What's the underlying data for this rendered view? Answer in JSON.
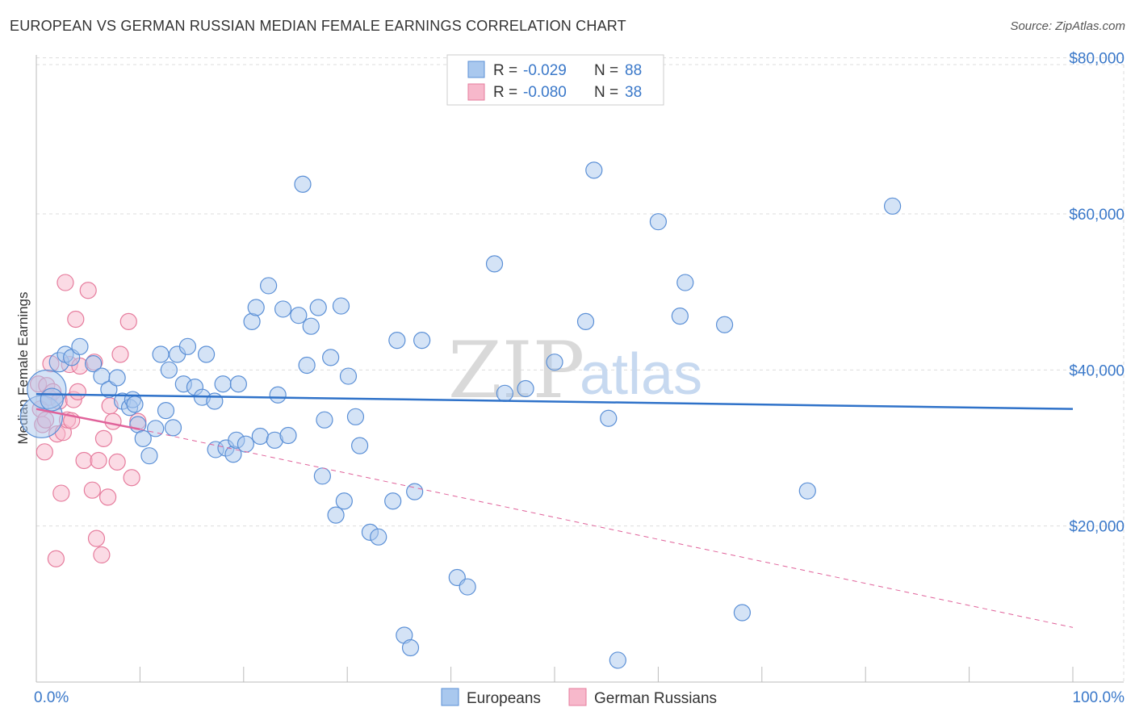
{
  "title": "EUROPEAN VS GERMAN RUSSIAN MEDIAN FEMALE EARNINGS CORRELATION CHART",
  "source": "Source: ZipAtlas.com",
  "watermark": {
    "zip": "ZIP",
    "atlas": "atlas"
  },
  "colors": {
    "blue_fill": "#a9c8ee",
    "blue_stroke": "#5a8fd6",
    "blue_line": "#2f72c9",
    "pink_fill": "#f7b8cb",
    "pink_stroke": "#e67c9d",
    "pink_line": "#e0629a",
    "grid": "#dddddd",
    "label": "#3a78c9"
  },
  "legend": {
    "rows": [
      {
        "r_label": "R = ",
        "r_value": "-0.029",
        "n_label": "N = ",
        "n_value": "88"
      },
      {
        "r_label": "R = ",
        "r_value": "-0.080",
        "n_label": "N = ",
        "n_value": "38"
      }
    ]
  },
  "bottom_legend": {
    "series1": "Europeans",
    "series2": "German Russians"
  },
  "chart_data": {
    "type": "scatter",
    "title": "EUROPEAN VS GERMAN RUSSIAN MEDIAN FEMALE EARNINGS CORRELATION CHART",
    "xlabel": "",
    "ylabel": "Median Female Earnings",
    "xlim": [
      0,
      100
    ],
    "ylim": [
      0,
      81000
    ],
    "x_tick_labels": [
      "0.0%",
      "100.0%"
    ],
    "y_ticks": [
      {
        "value": 20000,
        "label": "$20,000"
      },
      {
        "value": 40000,
        "label": "$40,000"
      },
      {
        "value": 60000,
        "label": "$60,000"
      },
      {
        "value": 80000,
        "label": "$80,000"
      }
    ],
    "series": [
      {
        "name": "Europeans",
        "R": -0.029,
        "N": 88,
        "trend": {
          "x": [
            0,
            100
          ],
          "y": [
            36900,
            35000
          ]
        },
        "points": [
          [
            0.5,
            34000,
            26
          ],
          [
            1.0,
            37500,
            24
          ],
          [
            1.5,
            36200,
            14
          ],
          [
            2.2,
            41000,
            12
          ],
          [
            2.8,
            42000,
            10
          ],
          [
            3.4,
            41600,
            10
          ],
          [
            4.2,
            43000,
            10
          ],
          [
            5.5,
            40800,
            10
          ],
          [
            6.3,
            39200,
            10
          ],
          [
            7.0,
            37500,
            10
          ],
          [
            7.8,
            39000,
            10
          ],
          [
            8.3,
            36000,
            10
          ],
          [
            9.0,
            35200,
            10
          ],
          [
            9.3,
            36200,
            10
          ],
          [
            9.5,
            35600,
            10
          ],
          [
            9.8,
            33000,
            10
          ],
          [
            10.3,
            31200,
            10
          ],
          [
            10.9,
            29000,
            10
          ],
          [
            11.5,
            32500,
            10
          ],
          [
            12.5,
            34800,
            10
          ],
          [
            12.0,
            42000,
            10
          ],
          [
            12.8,
            40000,
            10
          ],
          [
            13.2,
            32600,
            10
          ],
          [
            13.6,
            42000,
            10
          ],
          [
            14.2,
            38200,
            10
          ],
          [
            14.6,
            43000,
            10
          ],
          [
            15.3,
            37800,
            10
          ],
          [
            16.0,
            36500,
            10
          ],
          [
            16.4,
            42000,
            10
          ],
          [
            17.2,
            36000,
            10
          ],
          [
            17.3,
            29800,
            10
          ],
          [
            18.0,
            38200,
            10
          ],
          [
            18.3,
            30000,
            10
          ],
          [
            19.0,
            29200,
            10
          ],
          [
            19.3,
            31000,
            10
          ],
          [
            19.5,
            38200,
            10
          ],
          [
            20.2,
            30500,
            10
          ],
          [
            20.8,
            46200,
            10
          ],
          [
            21.2,
            48000,
            10
          ],
          [
            21.6,
            31500,
            10
          ],
          [
            22.4,
            50800,
            10
          ],
          [
            23.0,
            31000,
            10
          ],
          [
            23.3,
            36800,
            10
          ],
          [
            23.8,
            47800,
            10
          ],
          [
            24.3,
            31600,
            10
          ],
          [
            25.3,
            47000,
            10
          ],
          [
            25.7,
            63800,
            10
          ],
          [
            26.1,
            40600,
            10
          ],
          [
            26.5,
            45600,
            10
          ],
          [
            27.2,
            48000,
            10
          ],
          [
            27.6,
            26400,
            10
          ],
          [
            27.8,
            33600,
            10
          ],
          [
            28.4,
            41600,
            10
          ],
          [
            28.9,
            21400,
            10
          ],
          [
            29.4,
            48200,
            10
          ],
          [
            29.7,
            23200,
            10
          ],
          [
            30.1,
            39200,
            10
          ],
          [
            30.8,
            34000,
            10
          ],
          [
            31.2,
            30300,
            10
          ],
          [
            32.2,
            19200,
            10
          ],
          [
            33.0,
            18600,
            10
          ],
          [
            34.4,
            23200,
            10
          ],
          [
            34.8,
            43800,
            10
          ],
          [
            35.5,
            6000,
            10
          ],
          [
            36.1,
            4400,
            10
          ],
          [
            36.5,
            24400,
            10
          ],
          [
            37.2,
            43800,
            10
          ],
          [
            40.6,
            13400,
            10
          ],
          [
            41.6,
            12200,
            10
          ],
          [
            44.2,
            53600,
            10
          ],
          [
            45.2,
            37000,
            10
          ],
          [
            47.2,
            37600,
            10
          ],
          [
            50.0,
            41000,
            10
          ],
          [
            53.0,
            46200,
            10
          ],
          [
            53.8,
            65600,
            10
          ],
          [
            55.2,
            33800,
            10
          ],
          [
            56.1,
            2800,
            10
          ],
          [
            60.0,
            59000,
            10
          ],
          [
            62.1,
            46900,
            10
          ],
          [
            62.6,
            51200,
            10
          ],
          [
            66.4,
            45800,
            10
          ],
          [
            68.1,
            8900,
            10
          ],
          [
            74.4,
            24500,
            10
          ],
          [
            82.6,
            61000,
            10
          ]
        ]
      },
      {
        "name": "German Russians",
        "R": -0.08,
        "N": 38,
        "trend": {
          "x": [
            0,
            10
          ],
          "y": [
            35000,
            32400
          ]
        },
        "trend_dashed": {
          "x": [
            10,
            100
          ],
          "y": [
            32400,
            7000
          ]
        },
        "points": [
          [
            0.2,
            38200,
            10
          ],
          [
            0.4,
            35000,
            10
          ],
          [
            0.6,
            33000,
            10
          ],
          [
            0.8,
            29500,
            10
          ],
          [
            1.0,
            38000,
            10
          ],
          [
            1.2,
            36500,
            10
          ],
          [
            1.4,
            40800,
            10
          ],
          [
            1.6,
            37200,
            10
          ],
          [
            1.9,
            15800,
            10
          ],
          [
            2.0,
            31800,
            10
          ],
          [
            2.2,
            36000,
            10
          ],
          [
            2.4,
            24200,
            10
          ],
          [
            2.6,
            32000,
            10
          ],
          [
            2.8,
            51200,
            10
          ],
          [
            3.0,
            33600,
            10
          ],
          [
            3.2,
            40700,
            10
          ],
          [
            3.4,
            33500,
            10
          ],
          [
            3.6,
            36200,
            10
          ],
          [
            3.8,
            46500,
            10
          ],
          [
            4.0,
            37200,
            10
          ],
          [
            4.2,
            40500,
            10
          ],
          [
            4.6,
            28400,
            10
          ],
          [
            5.0,
            50200,
            10
          ],
          [
            5.4,
            24600,
            10
          ],
          [
            5.6,
            41000,
            10
          ],
          [
            5.8,
            18400,
            10
          ],
          [
            6.0,
            28400,
            10
          ],
          [
            6.3,
            16300,
            10
          ],
          [
            6.5,
            31200,
            10
          ],
          [
            6.9,
            23700,
            10
          ],
          [
            7.1,
            35400,
            10
          ],
          [
            7.4,
            33400,
            10
          ],
          [
            7.8,
            28200,
            10
          ],
          [
            8.1,
            42000,
            10
          ],
          [
            8.9,
            46200,
            10
          ],
          [
            9.2,
            26200,
            10
          ],
          [
            9.8,
            33400,
            10
          ],
          [
            0.9,
            33600,
            10
          ]
        ]
      }
    ]
  }
}
